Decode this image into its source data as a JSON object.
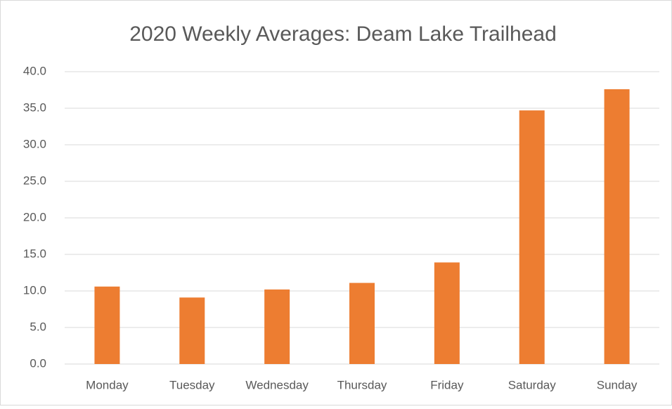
{
  "chart_data": {
    "type": "bar",
    "title": "2020 Weekly Averages: Deam Lake Trailhead",
    "categories": [
      "Monday",
      "Tuesday",
      "Wednesday",
      "Thursday",
      "Friday",
      "Saturday",
      "Sunday"
    ],
    "values": [
      10.6,
      9.1,
      10.2,
      11.1,
      13.9,
      34.7,
      37.6
    ],
    "color": "#ed7d31",
    "ylim": [
      0,
      40
    ],
    "yticks": [
      {
        "value": 0,
        "label": "0.0"
      },
      {
        "value": 5,
        "label": "5.0"
      },
      {
        "value": 10,
        "label": "10.0"
      },
      {
        "value": 15,
        "label": "15.0"
      },
      {
        "value": 20,
        "label": "20.0"
      },
      {
        "value": 25,
        "label": "25.0"
      },
      {
        "value": 30,
        "label": "30.0"
      },
      {
        "value": 35,
        "label": "35.0"
      },
      {
        "value": 40,
        "label": "40.0"
      }
    ],
    "grid": true
  }
}
